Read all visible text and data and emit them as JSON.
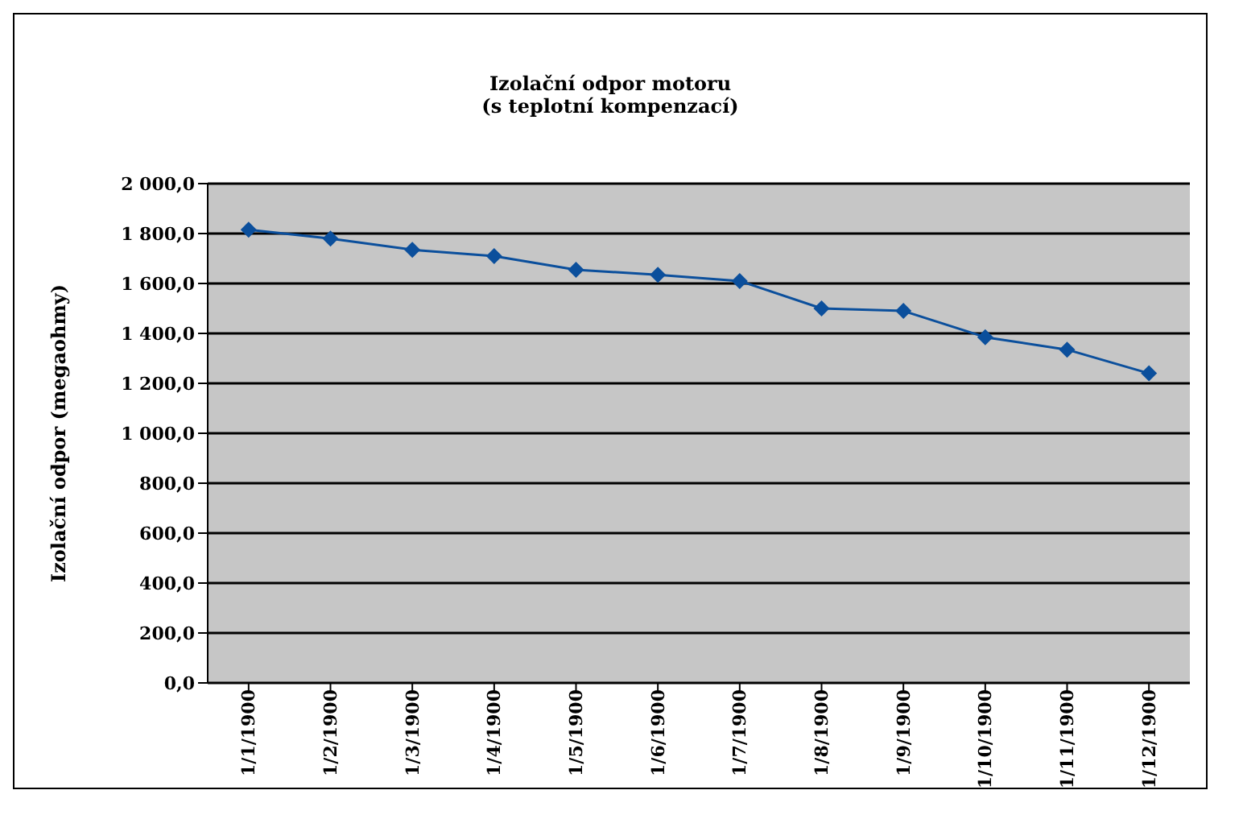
{
  "chart_data": {
    "type": "line",
    "title": "Izolační odpor motoru\n(s teplotní kompenzací)",
    "ylabel": "Izolační odpor (megaohmy)",
    "categories": [
      "1/1/1900",
      "1/2/1900",
      "1/3/1900",
      "1/4/1900",
      "1/5/1900",
      "1/6/1900",
      "1/7/1900",
      "1/8/1900",
      "1/9/1900",
      "1/10/1900",
      "1/11/1900",
      "1/12/1900"
    ],
    "series": [
      {
        "color": "#0b4f9c",
        "values": [
          1815,
          1780,
          1735,
          1710,
          1655,
          1635,
          1610,
          1500,
          1490,
          1385,
          1335,
          1240
        ]
      }
    ],
    "ylim": [
      0,
      2000
    ],
    "yticks": [
      {
        "value": 0,
        "label": "0,0"
      },
      {
        "value": 200,
        "label": "200,0"
      },
      {
        "value": 400,
        "label": "400,0"
      },
      {
        "value": 600,
        "label": "600,0"
      },
      {
        "value": 800,
        "label": "800,0"
      },
      {
        "value": 1000,
        "label": "1 000,0"
      },
      {
        "value": 1200,
        "label": "1 200,0"
      },
      {
        "value": 1400,
        "label": "1 400,0"
      },
      {
        "value": 1600,
        "label": "1 600,0"
      },
      {
        "value": 1800,
        "label": "1 800,0"
      },
      {
        "value": 2000,
        "label": "2 000,0"
      }
    ],
    "grid": "y",
    "marker": "diamond",
    "line_style": "solid",
    "legend": false
  }
}
